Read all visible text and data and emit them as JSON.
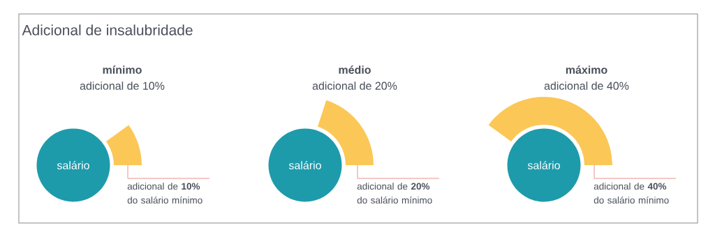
{
  "chart_data": {
    "type": "other",
    "title": "Adicional de insalubridade",
    "categories": [
      "mínimo",
      "médio",
      "máximo"
    ],
    "values": [
      10,
      20,
      40
    ],
    "value_labels": [
      "adicional de 10%",
      "adicional de 20%",
      "adicional de 40%"
    ],
    "colors": [
      "#fbc757",
      "#fbc757",
      "#fbc757"
    ],
    "annotations": [
      "salário",
      "salário",
      "salário",
      "adicional de **10%** do salário mínimo",
      "adicional de **20%** do salário mínimo",
      "adicional de **40%** do salário mínimo"
    ]
  }
}
